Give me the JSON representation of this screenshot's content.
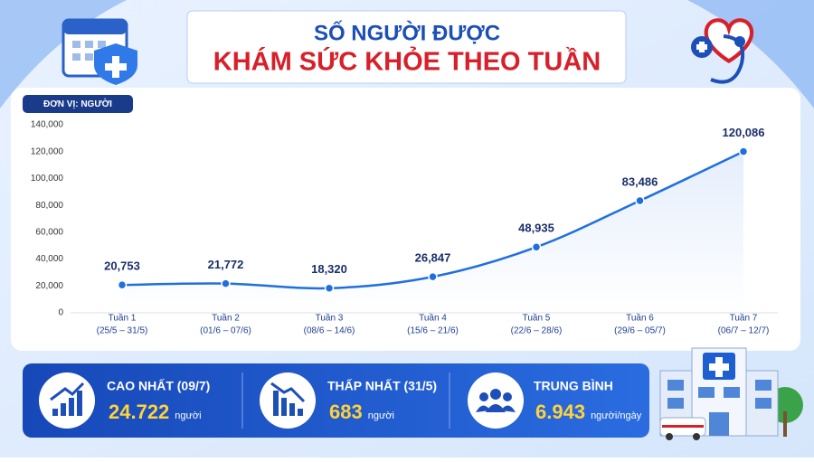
{
  "header": {
    "line1": "SỐ NGƯỜI ĐƯỢC",
    "line2": "KHÁM SỨC KHỎE THEO TUẦN"
  },
  "chart_data": {
    "type": "line",
    "y_label": "ĐƠN VỊ: NGƯỜI",
    "categories": [
      "Tuần 1",
      "Tuần 2",
      "Tuần 3",
      "Tuần 4",
      "Tuần 5",
      "Tuần 6",
      "Tuần 7"
    ],
    "date_ranges": [
      "(25/5 – 31/5)",
      "(01/6 – 07/6)",
      "(08/6 – 14/6)",
      "(15/6 – 21/6)",
      "(22/6 – 28/6)",
      "(29/6 – 05/7)",
      "(06/7 – 12/7)"
    ],
    "values": [
      20753,
      21772,
      18320,
      26847,
      48935,
      83486,
      120086
    ],
    "value_labels": [
      "20,753",
      "21,772",
      "18,320",
      "26,847",
      "48,935",
      "83,486",
      "120,086"
    ],
    "color": "#1f6fe0",
    "ylim": [
      0,
      140000
    ],
    "yticks": [
      0,
      {
        "value": 20000,
        "label": "20,000"
      },
      {
        "value": 40000,
        "label": "40,000"
      },
      {
        "value": 60000,
        "label": "60,000"
      },
      {
        "value": 80000,
        "label": "80,000"
      },
      {
        "value": 100000,
        "label": "100,000"
      },
      {
        "value": 120000,
        "label": "120,000"
      },
      {
        "value": 140000,
        "label": "140,000"
      }
    ],
    "grid": false
  },
  "stats": [
    {
      "label": "CAO NHẤT (09/7)",
      "value": "24.722",
      "unit": "người"
    },
    {
      "label": "THẤP NHẤT (31/5)",
      "value": "683",
      "unit": "người"
    },
    {
      "label": "TRUNG BÌNH",
      "value": "6.943",
      "unit": "người/ngày"
    }
  ]
}
